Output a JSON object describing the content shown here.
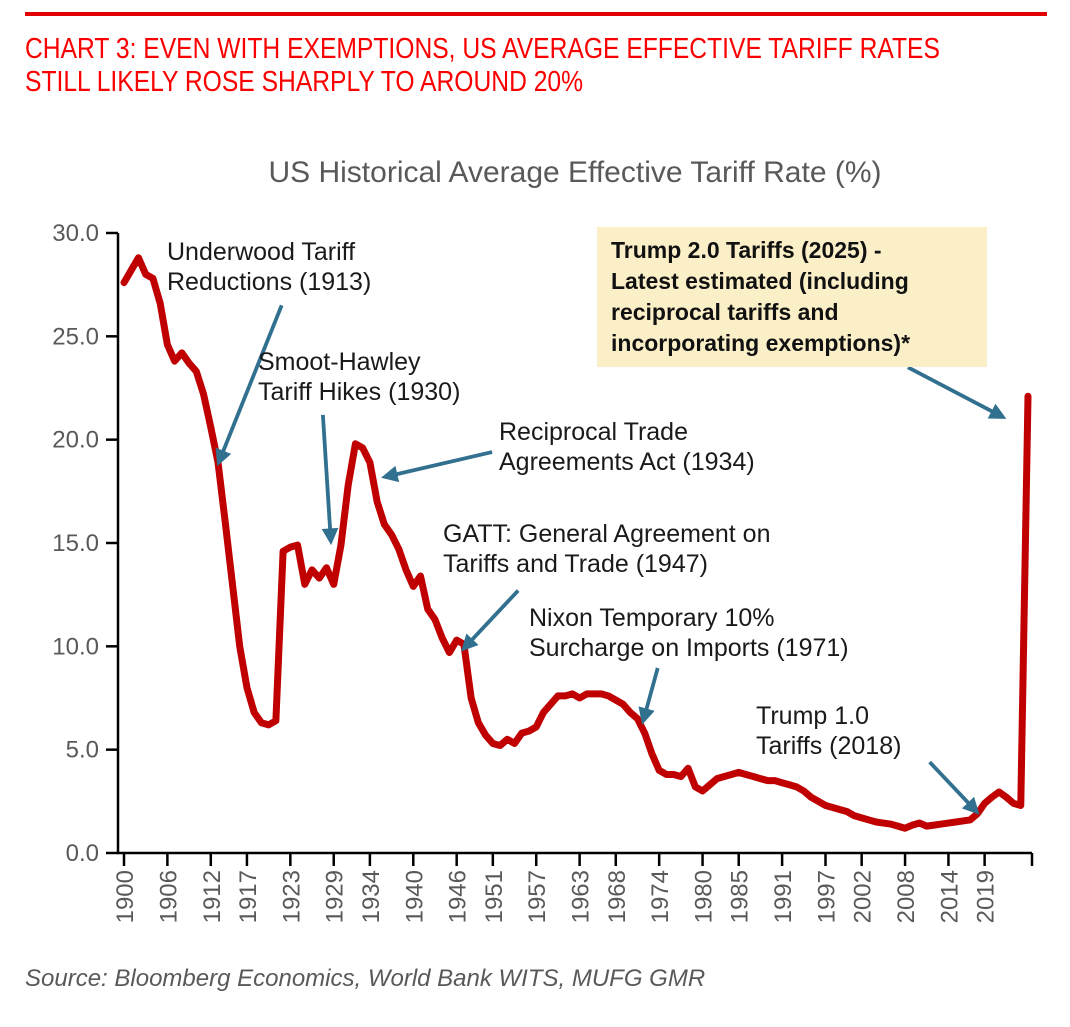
{
  "header": {
    "line1": "CHART 3: EVEN WITH EXEMPTIONS, US AVERAGE EFFECTIVE TARIFF RATES",
    "line2": "STILL LIKELY ROSE SHARPLY TO AROUND 20%"
  },
  "source": {
    "text": "Source: Bloomberg Economics, World Bank WITS, MUFG GMR"
  },
  "colors": {
    "heading_red": "#fb0000",
    "rule_red": "#e10000",
    "line_red": "#c00000",
    "arrow_blue": "#31708f",
    "callout_bg": "#fbefc8",
    "axis_text": "#595959",
    "axis_line": "#000000",
    "annotation_text": "#1a1a1a"
  },
  "chart_data": {
    "type": "line",
    "title": "US Historical Average Effective Tariff Rate (%)",
    "series_name": "US average effective tariff rate (%)",
    "grid": false,
    "legend": "none",
    "ylim": [
      0,
      30
    ],
    "yticks": [
      30,
      25,
      20,
      15,
      10,
      5,
      0
    ],
    "ytick_labels": [
      "30.0",
      "25.0",
      "20.0",
      "15.0",
      "10.0",
      "5.0",
      "0.0"
    ],
    "xtick_years": [
      1900,
      1906,
      1912,
      1917,
      1923,
      1929,
      1934,
      1940,
      1946,
      1951,
      1957,
      1963,
      1968,
      1974,
      1980,
      1985,
      1991,
      1997,
      2002,
      2008,
      2014,
      2019
    ],
    "years": [
      1900,
      1901,
      1902,
      1903,
      1904,
      1905,
      1906,
      1907,
      1908,
      1909,
      1910,
      1911,
      1912,
      1913,
      1914,
      1915,
      1916,
      1917,
      1918,
      1919,
      1920,
      1921,
      1922,
      1923,
      1924,
      1925,
      1926,
      1927,
      1928,
      1929,
      1930,
      1931,
      1932,
      1933,
      1934,
      1935,
      1936,
      1937,
      1938,
      1939,
      1940,
      1941,
      1942,
      1943,
      1944,
      1945,
      1946,
      1947,
      1948,
      1949,
      1950,
      1951,
      1952,
      1953,
      1954,
      1955,
      1956,
      1957,
      1958,
      1959,
      1960,
      1961,
      1962,
      1963,
      1964,
      1965,
      1966,
      1967,
      1968,
      1969,
      1970,
      1971,
      1972,
      1973,
      1974,
      1975,
      1976,
      1977,
      1978,
      1979,
      1980,
      1981,
      1982,
      1983,
      1984,
      1985,
      1986,
      1987,
      1988,
      1989,
      1990,
      1991,
      1992,
      1993,
      1994,
      1995,
      1996,
      1997,
      1998,
      1999,
      2000,
      2001,
      2002,
      2003,
      2004,
      2005,
      2006,
      2007,
      2008,
      2009,
      2010,
      2011,
      2012,
      2013,
      2014,
      2015,
      2016,
      2017,
      2018,
      2019,
      2020,
      2021,
      2022,
      2023,
      2024,
      2025
    ],
    "values": [
      27.6,
      28.2,
      28.8,
      28.0,
      27.8,
      26.6,
      24.6,
      23.8,
      24.2,
      23.7,
      23.3,
      22.2,
      20.6,
      18.9,
      16.0,
      13.0,
      10.0,
      8.0,
      6.8,
      6.3,
      6.2,
      6.4,
      14.6,
      14.8,
      14.9,
      13.0,
      13.7,
      13.3,
      13.8,
      13.0,
      14.9,
      17.8,
      19.8,
      19.6,
      18.9,
      17.0,
      15.9,
      15.4,
      14.7,
      13.7,
      12.9,
      13.4,
      11.8,
      11.3,
      10.4,
      9.7,
      10.3,
      10.1,
      7.5,
      6.3,
      5.7,
      5.3,
      5.2,
      5.5,
      5.3,
      5.8,
      5.9,
      6.1,
      6.8,
      7.2,
      7.6,
      7.6,
      7.7,
      7.5,
      7.7,
      7.7,
      7.7,
      7.6,
      7.4,
      7.2,
      6.8,
      6.5,
      5.8,
      4.8,
      4.0,
      3.8,
      3.8,
      3.7,
      4.1,
      3.2,
      3.0,
      3.3,
      3.6,
      3.7,
      3.8,
      3.9,
      3.8,
      3.7,
      3.6,
      3.5,
      3.5,
      3.4,
      3.3,
      3.2,
      3.0,
      2.7,
      2.5,
      2.3,
      2.2,
      2.1,
      2.0,
      1.8,
      1.7,
      1.6,
      1.5,
      1.45,
      1.4,
      1.3,
      1.2,
      1.35,
      1.45,
      1.3,
      1.35,
      1.4,
      1.45,
      1.5,
      1.55,
      1.6,
      1.9,
      2.4,
      2.7,
      2.95,
      2.7,
      2.4,
      2.3,
      22.1
    ],
    "annotations": [
      {
        "id": "underwood",
        "text": "Underwood Tariff\nReductions (1913)",
        "highlighted": false,
        "arrow": {
          "from": {
            "year": 1921.8,
            "value": 26.5
          },
          "to": {
            "year": 1913.1,
            "value": 18.9
          }
        }
      },
      {
        "id": "smoot-hawley",
        "text": "Smoot-Hawley\nTariff Hikes (1930)",
        "highlighted": false,
        "arrow": {
          "from": {
            "year": 1927.5,
            "value": 21.2
          },
          "to": {
            "year": 1928.6,
            "value": 15.1
          }
        }
      },
      {
        "id": "reciprocal-trade",
        "text": "Reciprocal Trade\nAgreements Act (1934)",
        "highlighted": false,
        "arrow": {
          "from": {
            "year": 1950.9,
            "value": 19.4
          },
          "to": {
            "year": 1936.1,
            "value": 18.2
          }
        }
      },
      {
        "id": "gatt",
        "text": "GATT: General Agreement on\nTariffs and Trade (1947)",
        "highlighted": false,
        "arrow": {
          "from": {
            "year": 1954.5,
            "value": 12.7
          },
          "to": {
            "year": 1947.0,
            "value": 9.9
          }
        }
      },
      {
        "id": "nixon",
        "text": "Nixon Temporary 10%\nSurcharge on Imports (1971)",
        "highlighted": false,
        "arrow": {
          "from": {
            "year": 1973.8,
            "value": 8.95
          },
          "to": {
            "year": 1971.8,
            "value": 6.4
          }
        }
      },
      {
        "id": "trump-1",
        "text": "Trump 1.0\nTariffs (2018)",
        "highlighted": false,
        "arrow": {
          "from": {
            "year": 2011.4,
            "value": 4.4
          },
          "to": {
            "year": 2017.9,
            "value": 2.0
          }
        }
      },
      {
        "id": "trump-2",
        "text": "Trump 2.0 Tariffs (2025) -\nLatest estimated (including\nreciprocal tariffs and\nincorporating exemptions)*",
        "highlighted": true,
        "arrow": {
          "from": {
            "year": 2008.4,
            "value": 23.5
          },
          "to": {
            "year": 2021.5,
            "value": 21.1
          }
        }
      }
    ]
  }
}
